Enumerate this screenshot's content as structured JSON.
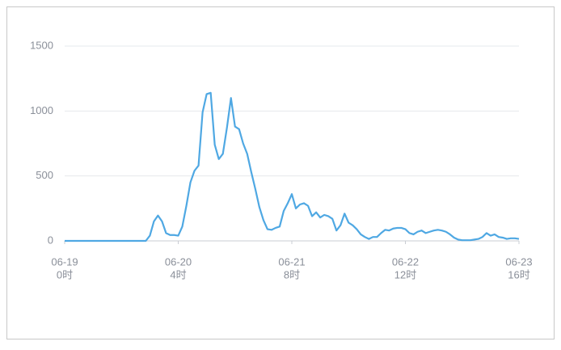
{
  "chart_data": {
    "type": "line",
    "color": "#4fa8e3",
    "grid": true,
    "xlim": [
      0,
      112
    ],
    "ylim": [
      0,
      1500
    ],
    "yticks": [
      0,
      500,
      1000,
      1500
    ],
    "xticks": [
      {
        "value": 0,
        "label": [
          "06-19",
          "0时"
        ]
      },
      {
        "value": 28,
        "label": [
          "06-20",
          "4时"
        ]
      },
      {
        "value": 56,
        "label": [
          "06-21",
          "8时"
        ]
      },
      {
        "value": 84,
        "label": [
          "06-22",
          "12时"
        ]
      },
      {
        "value": 112,
        "label": [
          "06-23",
          "16时"
        ]
      }
    ],
    "x": [
      0,
      1,
      2,
      3,
      4,
      5,
      6,
      7,
      8,
      9,
      10,
      11,
      12,
      13,
      14,
      15,
      16,
      17,
      18,
      19,
      20,
      21,
      22,
      23,
      24,
      25,
      26,
      27,
      28,
      29,
      30,
      31,
      32,
      33,
      34,
      35,
      36,
      37,
      38,
      39,
      40,
      41,
      42,
      43,
      44,
      45,
      46,
      47,
      48,
      49,
      50,
      51,
      52,
      53,
      54,
      55,
      56,
      57,
      58,
      59,
      60,
      61,
      62,
      63,
      64,
      65,
      66,
      67,
      68,
      69,
      70,
      71,
      72,
      73,
      74,
      75,
      76,
      77,
      78,
      79,
      80,
      81,
      82,
      83,
      84,
      85,
      86,
      87,
      88,
      89,
      90,
      91,
      92,
      93,
      94,
      95,
      96,
      97,
      98,
      99,
      100,
      101,
      102,
      103,
      104,
      105,
      106,
      107,
      108,
      109,
      110,
      111,
      112
    ],
    "values": [
      0,
      0,
      0,
      0,
      0,
      0,
      0,
      0,
      0,
      0,
      0,
      0,
      0,
      0,
      0,
      0,
      0,
      0,
      0,
      0,
      0,
      40,
      150,
      195,
      150,
      60,
      45,
      45,
      40,
      110,
      270,
      450,
      540,
      580,
      990,
      1130,
      1140,
      740,
      630,
      670,
      870,
      1100,
      880,
      860,
      750,
      670,
      530,
      400,
      260,
      160,
      90,
      85,
      100,
      110,
      230,
      290,
      360,
      250,
      280,
      290,
      270,
      190,
      220,
      180,
      200,
      190,
      170,
      80,
      120,
      210,
      140,
      120,
      90,
      50,
      30,
      15,
      30,
      30,
      60,
      85,
      80,
      95,
      100,
      100,
      90,
      60,
      50,
      70,
      80,
      60,
      70,
      80,
      85,
      80,
      70,
      50,
      25,
      10,
      5,
      5,
      5,
      10,
      15,
      30,
      60,
      40,
      50,
      30,
      25,
      15,
      20,
      20,
      15
    ]
  }
}
